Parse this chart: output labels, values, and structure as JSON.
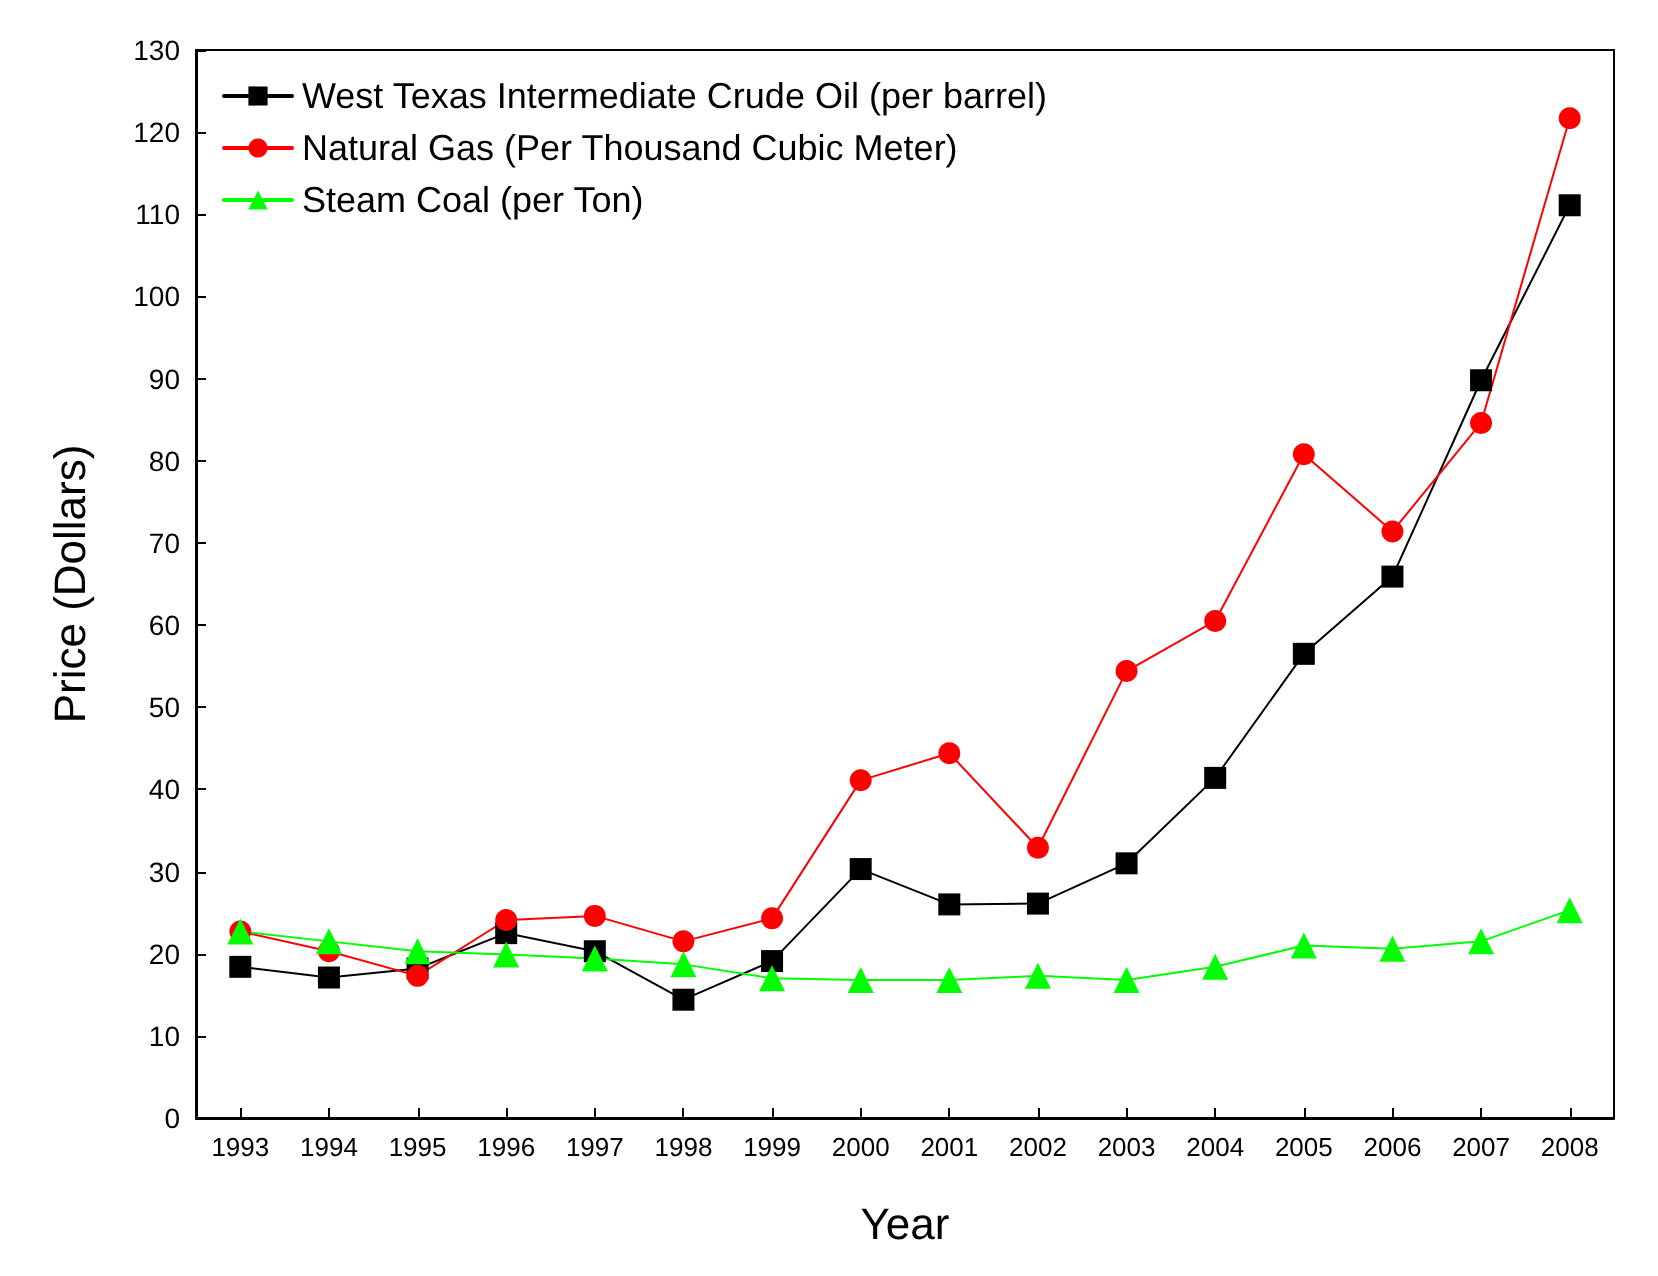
{
  "chart_data": {
    "type": "line",
    "xlabel": "Year",
    "ylabel": "Price (Dollars)",
    "categories": [
      "1993",
      "1994",
      "1995",
      "1996",
      "1997",
      "1998",
      "1999",
      "2000",
      "2001",
      "2002",
      "2003",
      "2004",
      "2005",
      "2006",
      "2007",
      "2008"
    ],
    "series": [
      {
        "name": "West Texas Intermediate Crude Oil (per barrel)",
        "color": "#000000",
        "marker": "square",
        "values": [
          18.4,
          17.1,
          18.2,
          22.5,
          20.3,
          14.4,
          19.1,
          30.3,
          26.0,
          26.1,
          31.0,
          41.4,
          56.5,
          65.9,
          89.8,
          111.1
        ]
      },
      {
        "name": "Natural Gas (Per Thousand Cubic Meter)",
        "color": "#ff0000",
        "marker": "circle",
        "values": [
          22.7,
          20.3,
          17.3,
          24.1,
          24.6,
          21.5,
          24.3,
          41.1,
          44.4,
          32.9,
          54.4,
          60.5,
          80.8,
          71.4,
          84.6,
          121.7
        ]
      },
      {
        "name": "Steam Coal (per Ton)",
        "color": "#00ff00",
        "marker": "triangle",
        "values": [
          22.7,
          21.5,
          20.3,
          19.9,
          19.4,
          18.7,
          17.0,
          16.8,
          16.8,
          17.3,
          16.8,
          18.4,
          21.0,
          20.6,
          21.5,
          25.3
        ]
      }
    ],
    "ylim": [
      0,
      130
    ],
    "yticks": [
      0,
      10,
      20,
      30,
      40,
      50,
      60,
      70,
      80,
      90,
      100,
      110,
      120,
      130
    ],
    "grid": false,
    "legend": "top left",
    "line_style": "solid"
  }
}
